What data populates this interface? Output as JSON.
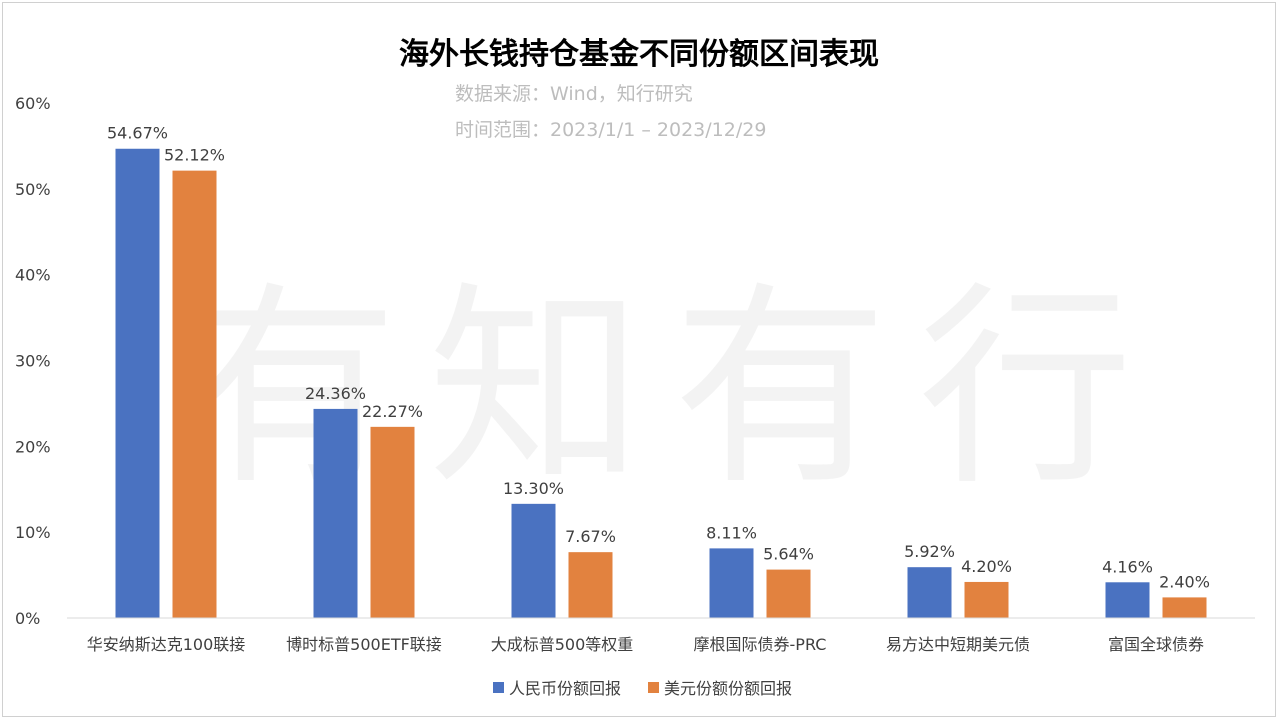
{
  "title": "海外长钱持仓基金不同份额区间表现",
  "source": "数据来源：Wind，知行研究",
  "period": "时间范围：2023/1/1 – 2023/12/29",
  "watermark": "有知有行",
  "colors": {
    "series1": "#4a72c1",
    "series2": "#e2823f",
    "axis": "#d9d9d9",
    "text": "#404040"
  },
  "chart_data": {
    "type": "bar",
    "title": "海外长钱持仓基金不同份额区间表现",
    "categories": [
      "华安纳斯达克100联接",
      "博时标普500ETF联接",
      "大成标普500等权重",
      "摩根国际债券-PRC",
      "易方达中短期美元债",
      "富国全球债券"
    ],
    "series": [
      {
        "name": "人民币份额回报",
        "values": [
          54.67,
          24.36,
          13.3,
          8.11,
          5.92,
          4.16
        ],
        "labels": [
          "54.67%",
          "24.36%",
          "13.30%",
          "8.11%",
          "5.92%",
          "4.16%"
        ]
      },
      {
        "name": "美元份额份额回报",
        "values": [
          52.12,
          22.27,
          7.67,
          5.64,
          4.2,
          2.4
        ],
        "labels": [
          "52.12%",
          "22.27%",
          "7.67%",
          "5.64%",
          "4.20%",
          "2.40%"
        ]
      }
    ],
    "ylim": [
      0,
      60
    ],
    "yticks": [
      "0%",
      "10%",
      "20%",
      "30%",
      "40%",
      "50%",
      "60%"
    ],
    "grid": false,
    "legend": "bottom-center"
  }
}
